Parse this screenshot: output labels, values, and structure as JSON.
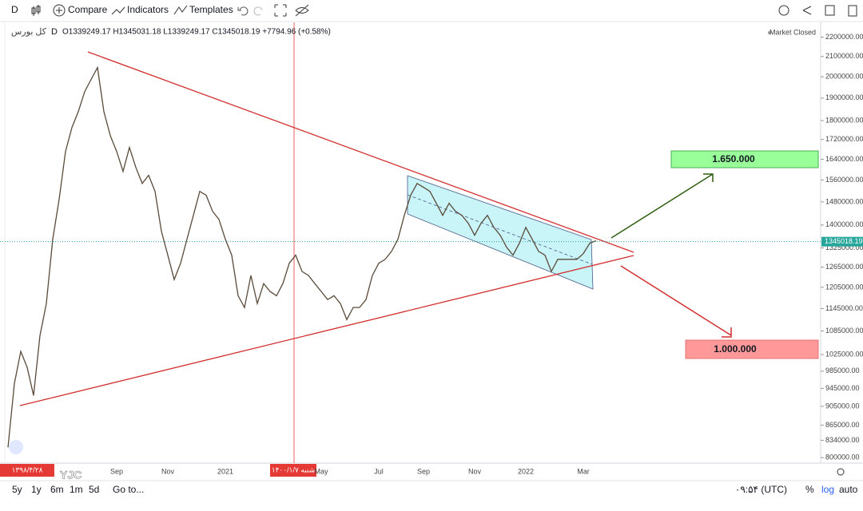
{
  "toolbar": {
    "interval": "D",
    "compare": "Compare",
    "indicators": "Indicators",
    "templates": "Templates"
  },
  "legend": {
    "symbol": "کل بورس",
    "interval": "D",
    "ohlc": "O1339249.17 H1345031.18 L1339249.17 C1345018.19 +7794.96 (+0.58%)",
    "status": "Market Closed"
  },
  "annotations": {
    "target_up": "1.650.000",
    "target_down": "1.000.000"
  },
  "date_labels": {
    "start": "۱۳۹۸/۴/۲۸",
    "cursor": "۱۴۰۰/۱/۷ شنبه"
  },
  "logo": "YJC",
  "bottom_bar": {
    "ranges": [
      "5y",
      "1y",
      "6m",
      "1m",
      "5d"
    ],
    "goto": "Go to...",
    "time": "۰۹:۵۴ (UTC)",
    "percent": "%",
    "log": "log",
    "auto": "auto"
  },
  "chart_data": {
    "type": "line",
    "log": true,
    "grid": false,
    "color": "#5a4a3a",
    "categories": [
      null,
      null,
      null,
      null,
      null,
      null,
      null,
      null,
      null,
      null,
      null,
      null,
      null,
      null,
      null,
      null,
      null,
      "Sep",
      null,
      null,
      null,
      null,
      null,
      null,
      null,
      "Nov",
      null,
      null,
      null,
      null,
      null,
      null,
      null,
      null,
      "2021",
      null,
      null,
      null,
      null,
      null,
      null,
      null,
      null,
      null,
      null,
      null,
      null,
      null,
      null,
      "May",
      null,
      null,
      null,
      null,
      null,
      null,
      null,
      null,
      "Jul",
      null,
      null,
      null,
      null,
      null,
      null,
      "Sep",
      null,
      null,
      null,
      null,
      null,
      null,
      null,
      "Nov",
      null,
      null,
      null,
      null,
      null,
      null,
      null,
      "2022",
      null,
      null,
      null,
      null,
      null,
      null,
      null,
      null,
      "Mar",
      null,
      null
    ],
    "values": [
      820000,
      956000,
      1033000,
      994000,
      929000,
      1073000,
      1159000,
      1353000,
      1489000,
      1671000,
      1770000,
      1839000,
      1930000,
      1987000,
      2045000,
      1839000,
      1736000,
      1671000,
      1593000,
      1687000,
      1608000,
      1547000,
      1578000,
      1518000,
      1379000,
      1302000,
      1228000,
      1277000,
      1353000,
      1433000,
      1518000,
      1504000,
      1447000,
      1419000,
      1353000,
      1302000,
      1181000,
      1148000,
      1240000,
      1159000,
      1216000,
      1193000,
      1181000,
      1216000,
      1277000,
      1302000,
      1252000,
      1240000,
      1216000,
      1193000,
      1170000,
      1181000,
      1159000,
      1115000,
      1148000,
      1148000,
      1170000,
      1240000,
      1277000,
      1289000,
      1314000,
      1353000,
      1433000,
      1504000,
      1547000,
      1533000,
      1518000,
      1475000,
      1433000,
      1475000,
      1447000,
      1433000,
      1406000,
      1366000,
      1406000,
      1433000,
      1392000,
      1366000,
      1327000,
      1302000,
      1340000,
      1392000,
      1353000,
      1314000,
      1302000,
      1252000,
      1289000,
      1289000,
      1289000,
      1289000,
      1307000,
      1340000,
      1348000
    ],
    "ylim": [
      789500,
      2271000
    ],
    "yticks": [
      {
        "value": 2200000,
        "label": "2200000.00"
      },
      {
        "value": 2100000,
        "label": "2100000.00"
      },
      {
        "value": 2000000,
        "label": "2000000.00"
      },
      {
        "value": 1900000,
        "label": "1900000.00"
      },
      {
        "value": 1800000,
        "label": "1800000.00"
      },
      {
        "value": 1720000,
        "label": "1720000.00"
      },
      {
        "value": 1640000,
        "label": "1640000.00"
      },
      {
        "value": 1560000,
        "label": "1560000.00"
      },
      {
        "value": 1480000,
        "label": "1480000.00"
      },
      {
        "value": 1400000,
        "label": "1400000.00"
      },
      {
        "value": 1325000,
        "label": "1325000.00"
      },
      {
        "value": 1265000,
        "label": "1265000.00"
      },
      {
        "value": 1205000,
        "label": "1205000.00"
      },
      {
        "value": 1145000,
        "label": "1145000.00"
      },
      {
        "value": 1085000,
        "label": "1085000.00"
      },
      {
        "value": 1025000,
        "label": "1025000.00"
      },
      {
        "value": 985000,
        "label": "985000.00"
      },
      {
        "value": 945000,
        "label": "945000.00"
      },
      {
        "value": 905000,
        "label": "905000.00"
      },
      {
        "value": 865000,
        "label": "865000.00"
      },
      {
        "value": 834000,
        "label": "834000.00"
      },
      {
        "value": 800000,
        "label": "800000.00"
      }
    ],
    "last_price": 1345018.19,
    "last_price_color": "#26a69a"
  }
}
